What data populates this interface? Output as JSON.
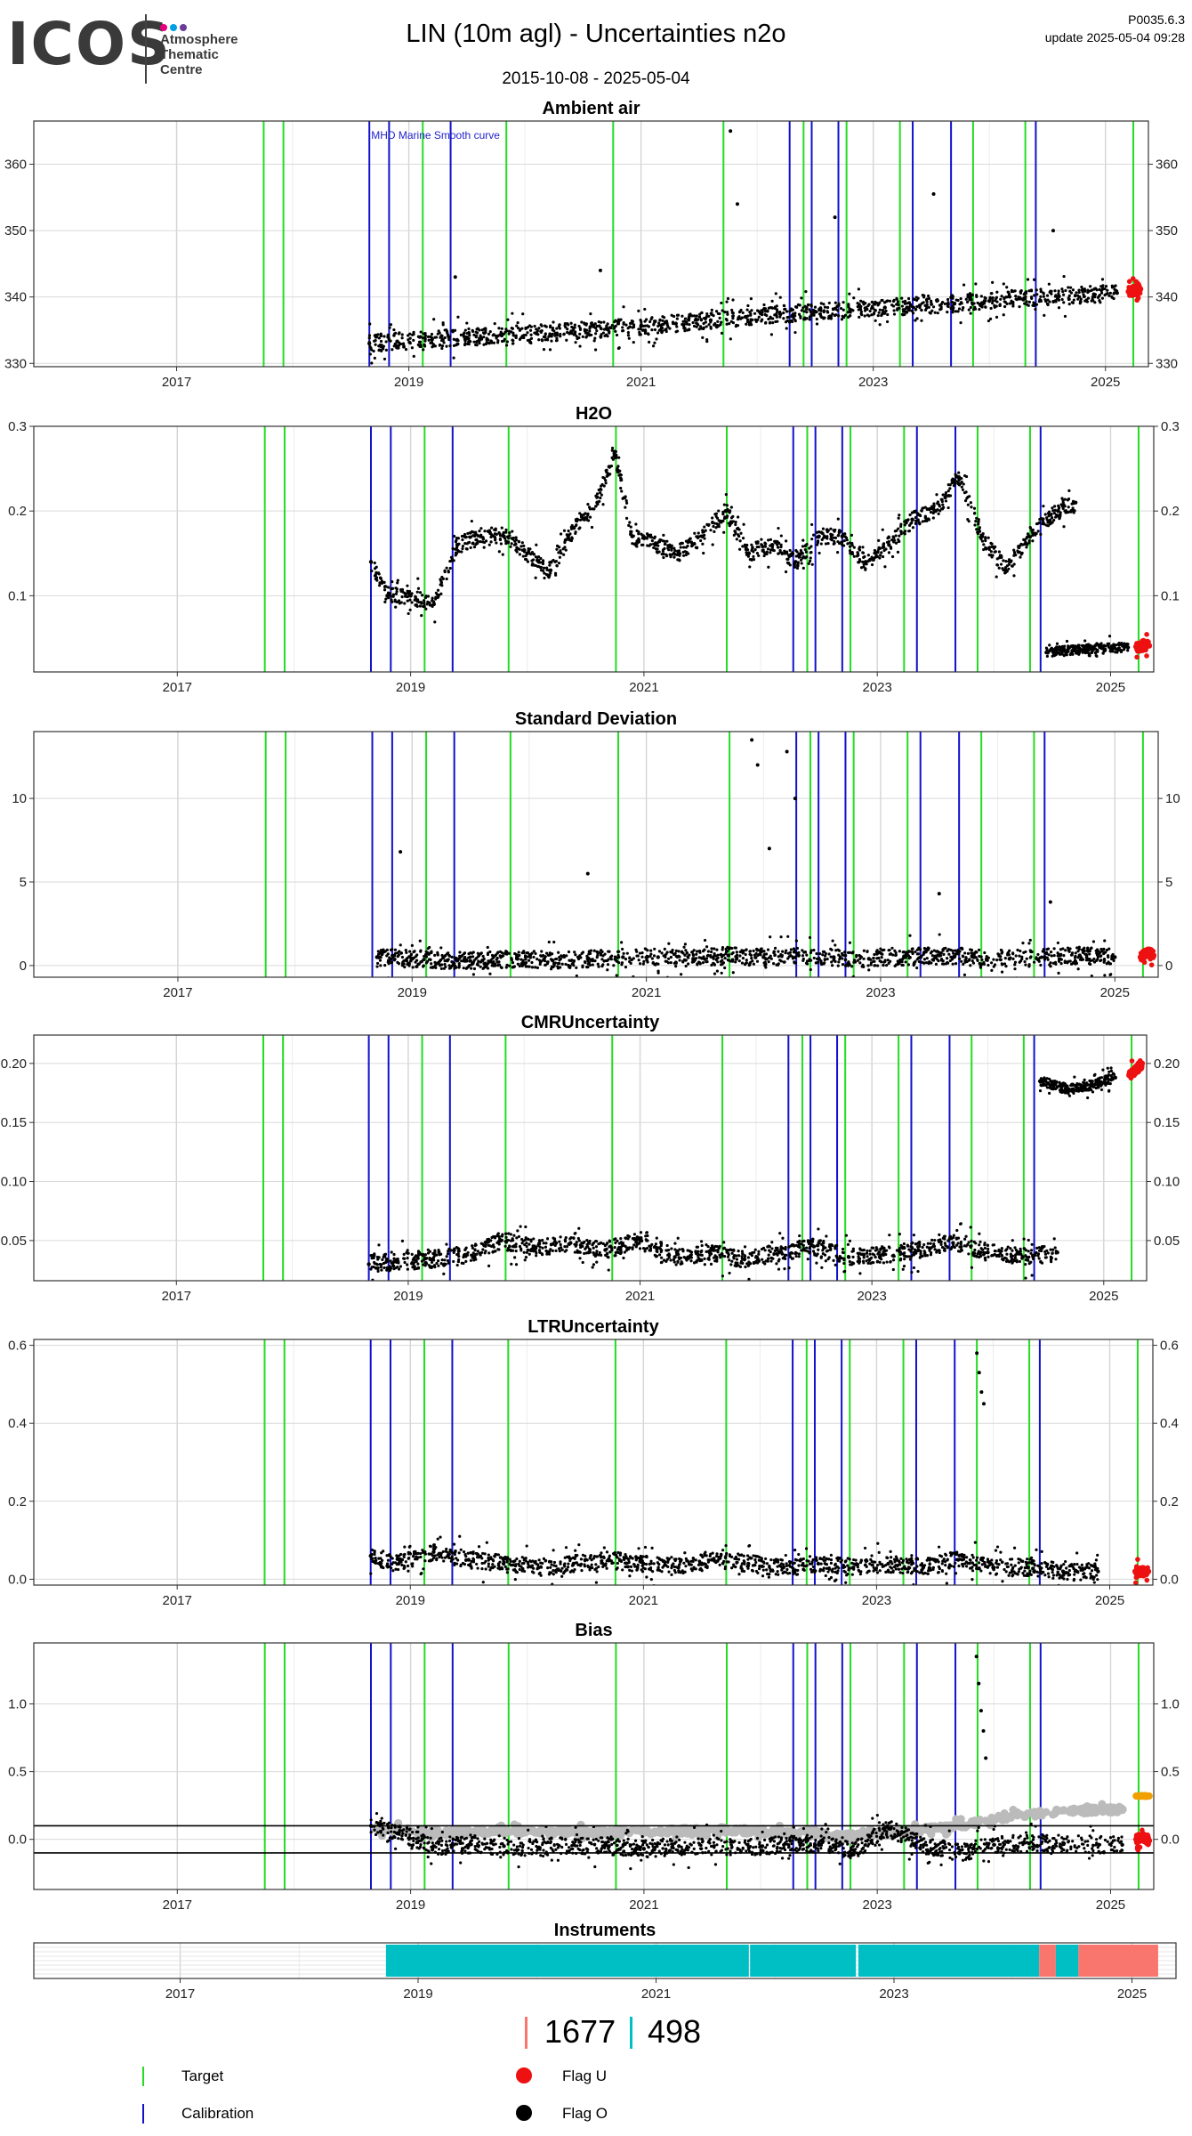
{
  "header": {
    "logo_text": "ICOS",
    "logo_subtitle": [
      "Atmosphere",
      "Thematic",
      "Centre"
    ],
    "logo_dot_colors": [
      "#e6007e",
      "#009fe3",
      "#6a3d9a"
    ],
    "title": "LIN  (10m agl) - Uncertainties n2o",
    "version": "P0035.6.3",
    "update": "update  2025-05-04 09:28",
    "date_range": "2015-10-08 - 2025-05-04"
  },
  "colors": {
    "target": "#22dd22",
    "calibration": "#1111cc",
    "flag_u": "#ee1111",
    "flag_o": "#000000",
    "bias_grey": "#bbbbbb",
    "bias_orange": "#f0a000",
    "instrument_teal": "#00bfc4",
    "instrument_salmon": "#f8766d",
    "annotation_blue": "#2222cc"
  },
  "legend": {
    "target_label": "Target",
    "calibration_label": "Calibration",
    "flag_u_label": "Flag U",
    "flag_o_label": "Flag O",
    "count_salmon": "1677",
    "count_teal": "498"
  },
  "chart_data": [
    {
      "type": "scatter",
      "title": "Ambient air",
      "xlim": [
        2015.77,
        2025.37
      ],
      "ylim": [
        329.5,
        366.5
      ],
      "y_ticks": [
        330,
        340,
        350,
        360
      ],
      "y_tick_labels": [
        "330",
        "340",
        "350",
        "360"
      ],
      "x_ticks": [
        2017,
        2019,
        2021,
        2023,
        2025
      ],
      "annotation": "MHD Marine Smooth curve",
      "target_lines": [
        2017.75,
        2017.92,
        2019.12,
        2019.84,
        2020.76,
        2021.71,
        2022.4,
        2022.77,
        2023.23,
        2023.86,
        2024.31,
        2025.24
      ],
      "calibration_lines": [
        2018.66,
        2018.83,
        2019.36,
        2022.28,
        2022.47,
        2022.7,
        2023.34,
        2023.67,
        2024.4
      ],
      "series_points": [
        {
          "name": "Flag O",
          "x": [
            2018.66,
            2018.9,
            2019.2,
            2019.5,
            2019.8,
            2020.1,
            2020.4,
            2020.7,
            2021.0,
            2021.3,
            2021.6,
            2021.9,
            2022.2,
            2022.5,
            2022.8,
            2023.1,
            2023.4,
            2023.7,
            2024.0,
            2024.3,
            2024.6,
            2024.9,
            2025.1
          ],
          "y": [
            333.0,
            333.3,
            333.6,
            333.9,
            334.2,
            334.5,
            334.8,
            335.2,
            335.6,
            336.0,
            336.5,
            337.0,
            337.4,
            337.8,
            338.1,
            338.4,
            338.7,
            339.0,
            339.4,
            339.8,
            340.1,
            340.4,
            340.6
          ]
        },
        {
          "name": "Flag U",
          "x": [
            2025.2,
            2025.25,
            2025.3
          ],
          "y": [
            340.8,
            341.0,
            341.2
          ]
        }
      ],
      "outliers": {
        "x": [
          2021.77,
          2021.83,
          2022.67,
          2023.52,
          2024.55,
          2019.4,
          2020.65
        ],
        "y": [
          365,
          354,
          352,
          355.5,
          350,
          343,
          344
        ]
      }
    },
    {
      "type": "scatter",
      "title": "H2O",
      "xlim": [
        2015.77,
        2025.37
      ],
      "ylim": [
        0.01,
        0.3
      ],
      "y_ticks": [
        0.1,
        0.2,
        0.3
      ],
      "y_tick_labels": [
        "0.1",
        "0.2",
        "0.3"
      ],
      "x_ticks": [
        2017,
        2019,
        2021,
        2023,
        2025
      ],
      "target_lines": [
        2017.75,
        2017.92,
        2019.12,
        2019.84,
        2020.76,
        2021.71,
        2022.4,
        2022.77,
        2023.23,
        2023.86,
        2024.31,
        2025.24
      ],
      "calibration_lines": [
        2018.66,
        2018.83,
        2019.36,
        2022.28,
        2022.47,
        2022.7,
        2023.34,
        2023.67,
        2024.4
      ],
      "series_points": [
        {
          "name": "Flag O",
          "x": [
            2018.66,
            2018.8,
            2019.0,
            2019.2,
            2019.4,
            2019.6,
            2019.8,
            2020.0,
            2020.2,
            2020.4,
            2020.6,
            2020.75,
            2020.9,
            2021.1,
            2021.3,
            2021.5,
            2021.7,
            2021.9,
            2022.1,
            2022.3,
            2022.5,
            2022.7,
            2022.9,
            2023.1,
            2023.3,
            2023.5,
            2023.7,
            2023.9,
            2024.1,
            2024.3,
            2024.55,
            2024.7
          ],
          "y": [
            0.14,
            0.1,
            0.1,
            0.09,
            0.16,
            0.17,
            0.17,
            0.15,
            0.13,
            0.18,
            0.21,
            0.27,
            0.17,
            0.16,
            0.15,
            0.17,
            0.2,
            0.15,
            0.16,
            0.14,
            0.17,
            0.17,
            0.14,
            0.16,
            0.19,
            0.2,
            0.24,
            0.17,
            0.13,
            0.17,
            0.2,
            0.21
          ]
        },
        {
          "name": "Flag O (low)",
          "x": [
            2024.45,
            2024.6,
            2024.8,
            2025.0,
            2025.15
          ],
          "y": [
            0.033,
            0.035,
            0.037,
            0.038,
            0.039
          ]
        },
        {
          "name": "Flag U",
          "x": [
            2025.22,
            2025.28,
            2025.33
          ],
          "y": [
            0.04,
            0.04,
            0.041
          ]
        }
      ]
    },
    {
      "type": "scatter",
      "title": "Standard Deviation",
      "xlim": [
        2015.77,
        2025.37
      ],
      "ylim": [
        -0.7,
        14.0
      ],
      "y_ticks": [
        0,
        5,
        10
      ],
      "y_tick_labels": [
        "0",
        "5",
        "10"
      ],
      "x_ticks": [
        2017,
        2019,
        2021,
        2023,
        2025
      ],
      "target_lines": [
        2017.75,
        2017.92,
        2019.12,
        2019.84,
        2020.76,
        2021.71,
        2022.4,
        2022.77,
        2023.23,
        2023.86,
        2024.31,
        2025.24
      ],
      "calibration_lines": [
        2018.66,
        2018.83,
        2019.36,
        2022.28,
        2022.47,
        2022.7,
        2023.34,
        2023.67,
        2024.4
      ],
      "series_points": [
        {
          "name": "Flag O",
          "x": [
            2018.7,
            2019.0,
            2019.3,
            2019.6,
            2019.9,
            2020.2,
            2020.5,
            2020.8,
            2021.1,
            2021.4,
            2021.7,
            2022.0,
            2022.3,
            2022.6,
            2022.9,
            2023.2,
            2023.5,
            2023.8,
            2024.1,
            2024.4,
            2024.7,
            2025.0
          ],
          "y": [
            0.5,
            0.4,
            0.3,
            0.3,
            0.4,
            0.3,
            0.4,
            0.5,
            0.5,
            0.4,
            0.6,
            0.5,
            0.6,
            0.5,
            0.4,
            0.5,
            0.6,
            0.5,
            0.4,
            0.5,
            0.6,
            0.5
          ]
        },
        {
          "name": "Flag U",
          "x": [
            2025.22,
            2025.28,
            2025.33
          ],
          "y": [
            0.5,
            0.8,
            0.6
          ]
        }
      ],
      "outliers": {
        "x": [
          2018.9,
          2020.5,
          2021.9,
          2021.95,
          2022.05,
          2022.2,
          2022.27,
          2023.5,
          2024.45
        ],
        "y": [
          6.8,
          5.5,
          13.5,
          12,
          7,
          12.8,
          10,
          4.3,
          3.8
        ]
      }
    },
    {
      "type": "scatter",
      "title": "CMRUncertainty",
      "xlim": [
        2015.77,
        2025.37
      ],
      "ylim": [
        0.016,
        0.224
      ],
      "y_ticks": [
        0.05,
        0.1,
        0.15,
        0.2
      ],
      "y_tick_labels": [
        "0.05",
        "0.10",
        "0.15",
        "0.20"
      ],
      "x_ticks": [
        2017,
        2019,
        2021,
        2023,
        2025
      ],
      "target_lines": [
        2017.75,
        2017.92,
        2019.12,
        2019.84,
        2020.76,
        2021.71,
        2022.4,
        2022.77,
        2023.23,
        2023.86,
        2024.31,
        2025.24
      ],
      "calibration_lines": [
        2018.66,
        2018.83,
        2019.36,
        2022.28,
        2022.47,
        2022.7,
        2023.34,
        2023.67,
        2024.4
      ],
      "series_points": [
        {
          "name": "Flag O",
          "x": [
            2018.66,
            2018.9,
            2019.2,
            2019.5,
            2019.8,
            2020.1,
            2020.4,
            2020.7,
            2021.0,
            2021.3,
            2021.6,
            2021.9,
            2022.2,
            2022.5,
            2022.8,
            2023.1,
            2023.4,
            2023.7,
            2024.0,
            2024.3,
            2024.6
          ],
          "y": [
            0.03,
            0.032,
            0.034,
            0.038,
            0.05,
            0.044,
            0.048,
            0.042,
            0.05,
            0.036,
            0.04,
            0.034,
            0.04,
            0.045,
            0.036,
            0.038,
            0.042,
            0.048,
            0.04,
            0.036,
            0.04
          ]
        },
        {
          "name": "Flag O (high)",
          "x": [
            2024.45,
            2024.7,
            2024.9,
            2025.1
          ],
          "y": [
            0.185,
            0.178,
            0.182,
            0.188
          ]
        },
        {
          "name": "Flag U",
          "x": [
            2025.22,
            2025.28,
            2025.33
          ],
          "y": [
            0.19,
            0.195,
            0.2
          ]
        }
      ]
    },
    {
      "type": "scatter",
      "title": "LTRUncertainty",
      "xlim": [
        2015.77,
        2025.37
      ],
      "ylim": [
        -0.015,
        0.615
      ],
      "y_ticks": [
        0.0,
        0.2,
        0.4,
        0.6
      ],
      "y_tick_labels": [
        "0.0",
        "0.2",
        "0.4",
        "0.6"
      ],
      "x_ticks": [
        2017,
        2019,
        2021,
        2023,
        2025
      ],
      "target_lines": [
        2017.75,
        2017.92,
        2019.12,
        2019.84,
        2020.76,
        2021.71,
        2022.4,
        2022.77,
        2023.23,
        2023.86,
        2024.31,
        2025.24
      ],
      "calibration_lines": [
        2018.66,
        2018.83,
        2019.36,
        2022.28,
        2022.47,
        2022.7,
        2023.34,
        2023.67,
        2024.4
      ],
      "series_points": [
        {
          "name": "Flag O",
          "x": [
            2018.66,
            2018.9,
            2019.2,
            2019.5,
            2019.8,
            2020.1,
            2020.4,
            2020.7,
            2021.0,
            2021.3,
            2021.6,
            2021.9,
            2022.2,
            2022.5,
            2022.8,
            2023.1,
            2023.4,
            2023.7,
            2024.0,
            2024.3,
            2024.6,
            2024.9
          ],
          "y": [
            0.06,
            0.04,
            0.07,
            0.05,
            0.04,
            0.03,
            0.04,
            0.05,
            0.04,
            0.03,
            0.05,
            0.04,
            0.03,
            0.04,
            0.03,
            0.04,
            0.03,
            0.05,
            0.03,
            0.03,
            0.02,
            0.02
          ]
        },
        {
          "name": "Flag U",
          "x": [
            2025.22,
            2025.28,
            2025.33
          ],
          "y": [
            0.02,
            0.02,
            0.02
          ]
        }
      ],
      "outliers": {
        "x": [
          2023.86,
          2023.88,
          2023.9,
          2023.92
        ],
        "y": [
          0.58,
          0.53,
          0.48,
          0.45
        ]
      }
    },
    {
      "type": "scatter",
      "title": "Bias",
      "xlim": [
        2015.77,
        2025.37
      ],
      "ylim": [
        -0.37,
        1.45
      ],
      "y_ticks": [
        0.0,
        0.5,
        1.0
      ],
      "y_tick_labels": [
        "0.0",
        "0.5",
        "1.0"
      ],
      "x_ticks": [
        2017,
        2019,
        2021,
        2023,
        2025
      ],
      "hlines": [
        0.1,
        -0.1
      ],
      "target_lines": [
        2017.75,
        2017.92,
        2019.12,
        2019.84,
        2020.76,
        2021.71,
        2022.4,
        2022.77,
        2023.23,
        2023.86,
        2024.31,
        2025.24
      ],
      "calibration_lines": [
        2018.66,
        2018.83,
        2019.36,
        2022.28,
        2022.47,
        2022.7,
        2023.34,
        2023.67,
        2024.4
      ],
      "series_points": [
        {
          "name": "Grey",
          "x": [
            2018.7,
            2019.2,
            2019.7,
            2020.2,
            2020.7,
            2021.2,
            2021.7,
            2022.2,
            2022.7,
            2023.2,
            2023.7,
            2024.2,
            2024.7,
            2025.1
          ],
          "y": [
            0.08,
            0.05,
            0.06,
            0.06,
            0.05,
            0.06,
            0.07,
            0.05,
            0.02,
            0.05,
            0.1,
            0.18,
            0.21,
            0.22
          ]
        },
        {
          "name": "Flag O",
          "x": [
            2018.66,
            2018.9,
            2019.2,
            2019.5,
            2019.8,
            2020.1,
            2020.4,
            2020.7,
            2021.0,
            2021.3,
            2021.6,
            2021.9,
            2022.2,
            2022.5,
            2022.8,
            2023.1,
            2023.4,
            2023.7,
            2024.0,
            2024.3,
            2024.6,
            2024.9,
            2025.1
          ],
          "y": [
            0.1,
            0.05,
            -0.05,
            -0.04,
            -0.05,
            -0.06,
            -0.04,
            -0.05,
            -0.07,
            -0.05,
            -0.05,
            -0.06,
            -0.04,
            -0.03,
            -0.08,
            0.08,
            -0.04,
            -0.1,
            -0.04,
            -0.03,
            -0.03,
            -0.04,
            -0.04
          ]
        },
        {
          "name": "Flag U",
          "x": [
            2025.22,
            2025.28,
            2025.33
          ],
          "y": [
            0.0,
            0.02,
            -0.01
          ]
        },
        {
          "name": "Orange",
          "x": [
            2025.22,
            2025.28,
            2025.33
          ],
          "y": [
            0.32,
            0.32,
            0.32
          ]
        }
      ],
      "outliers": {
        "x": [
          2023.85,
          2023.87,
          2023.89,
          2023.91,
          2023.93
        ],
        "y": [
          1.35,
          1.15,
          0.95,
          0.8,
          0.6
        ]
      }
    },
    {
      "type": "bar",
      "title": "Instruments",
      "xlim": [
        2015.77,
        2025.37
      ],
      "x_ticks": [
        2017,
        2019,
        2021,
        2023,
        2025
      ],
      "segments": [
        {
          "start": 2018.73,
          "end": 2021.78,
          "color": "teal"
        },
        {
          "start": 2021.79,
          "end": 2022.68,
          "color": "teal"
        },
        {
          "start": 2022.7,
          "end": 2024.22,
          "color": "teal"
        },
        {
          "start": 2024.22,
          "end": 2024.36,
          "color": "salmon"
        },
        {
          "start": 2024.36,
          "end": 2024.55,
          "color": "teal"
        },
        {
          "start": 2024.55,
          "end": 2025.22,
          "color": "salmon"
        }
      ]
    }
  ]
}
